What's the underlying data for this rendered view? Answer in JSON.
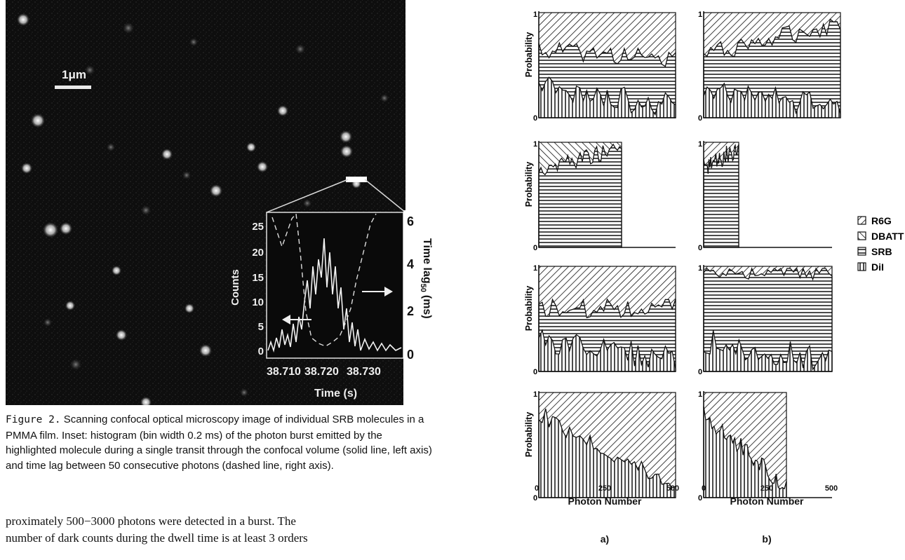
{
  "micrograph": {
    "scale_bar_label": "1μm",
    "inset": {
      "y_left_label": "Counts",
      "y_left_ticks": [
        "0",
        "5",
        "10",
        "15",
        "20",
        "25"
      ],
      "y_right_label": "Time lag",
      "y_right_sub": "50",
      "y_right_unit": "(ms)",
      "y_right_ticks": [
        "0",
        "2",
        "4",
        "6"
      ],
      "x_label": "Time (s)",
      "x_ticks": [
        "38.710",
        "38.720",
        "38.730"
      ]
    }
  },
  "caption": {
    "figure_label": "Figure 2.",
    "text": "Scanning confocal optical microscopy image of individual SRB molecules in a PMMA film. Inset:  histogram (bin width 0.2 ms) of the photon burst emitted by the highlighted molecule during a single transit through the confocal volume (solid line, left axis) and time lag between 50 consecutive photons (dashed line, right axis)."
  },
  "body_text": {
    "line1": "proximately 500−3000 photons were detected in a burst. The",
    "line2": "number of dark counts during the dwell time is at least 3 orders"
  },
  "figure_right": {
    "y_axis_label": "Probability",
    "y_tick_top": "1",
    "y_tick_bottom": "0",
    "x_ticks": [
      "0",
      "250",
      "500"
    ],
    "x_axis_label": "Photon Number",
    "column_labels": [
      "a)",
      "b)"
    ],
    "legend": [
      "R6G",
      "DBATT",
      "SRB",
      "DiI"
    ]
  }
}
